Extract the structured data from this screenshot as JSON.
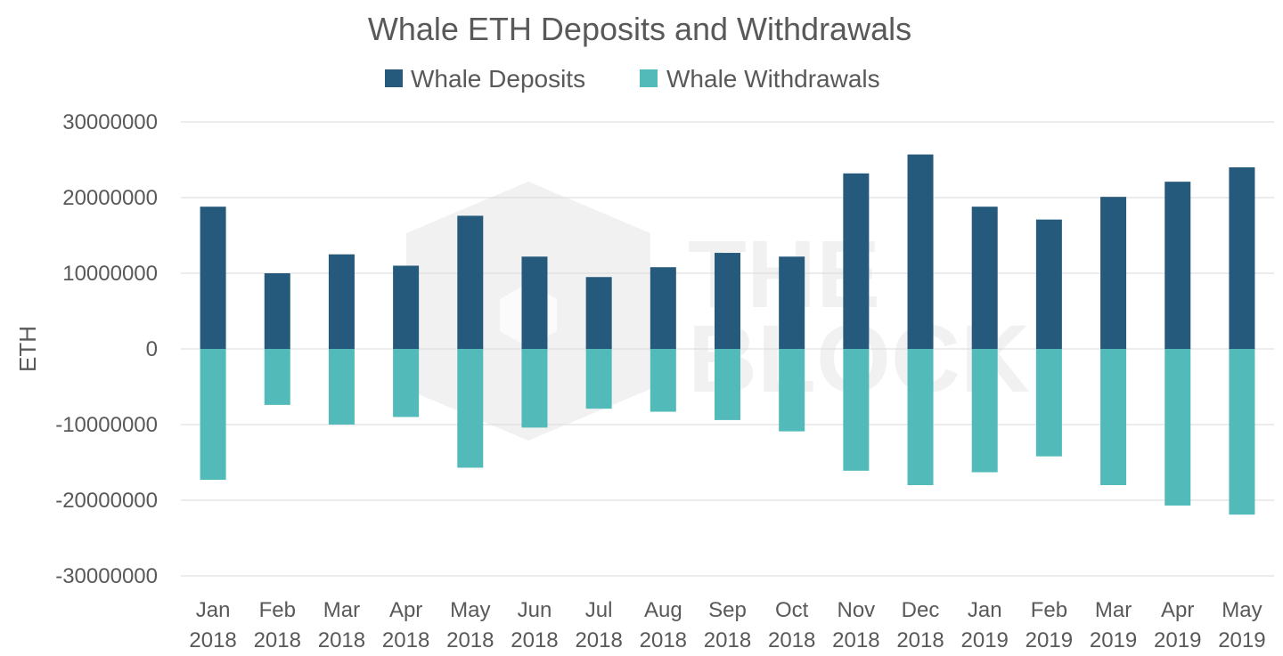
{
  "chart_data": {
    "type": "bar",
    "title": "Whale ETH Deposits and Withdrawals",
    "ylabel": "ETH",
    "xlabel": "",
    "ylim": [
      -30000000,
      30000000
    ],
    "yticks": [
      "30000000",
      "20000000",
      "10000000",
      "0",
      "-10000000",
      "-20000000",
      "-30000000"
    ],
    "ytick_values": [
      30000000,
      20000000,
      10000000,
      0,
      -10000000,
      -20000000,
      -30000000
    ],
    "grid": true,
    "legend_position": "top",
    "categories": [
      {
        "month": "Jan",
        "year": "2018"
      },
      {
        "month": "Feb",
        "year": "2018"
      },
      {
        "month": "Mar",
        "year": "2018"
      },
      {
        "month": "Apr",
        "year": "2018"
      },
      {
        "month": "May",
        "year": "2018"
      },
      {
        "month": "Jun",
        "year": "2018"
      },
      {
        "month": "Jul",
        "year": "2018"
      },
      {
        "month": "Aug",
        "year": "2018"
      },
      {
        "month": "Sep",
        "year": "2018"
      },
      {
        "month": "Oct",
        "year": "2018"
      },
      {
        "month": "Nov",
        "year": "2018"
      },
      {
        "month": "Dec",
        "year": "2018"
      },
      {
        "month": "Jan",
        "year": "2019"
      },
      {
        "month": "Feb",
        "year": "2019"
      },
      {
        "month": "Mar",
        "year": "2019"
      },
      {
        "month": "Apr",
        "year": "2019"
      },
      {
        "month": "May",
        "year": "2019"
      }
    ],
    "series": [
      {
        "name": "Whale Deposits",
        "color": "#265a7c",
        "values": [
          18800000,
          10000000,
          12500000,
          11000000,
          17600000,
          12200000,
          9500000,
          10800000,
          12700000,
          12200000,
          23200000,
          25700000,
          18800000,
          17100000,
          20100000,
          22100000,
          24000000
        ]
      },
      {
        "name": "Whale Withdrawals",
        "color": "#52bbba",
        "values": [
          -17300000,
          -7400000,
          -10000000,
          -9000000,
          -15700000,
          -10400000,
          -7900000,
          -8300000,
          -9400000,
          -10900000,
          -16100000,
          -18000000,
          -16300000,
          -14200000,
          -18000000,
          -20700000,
          -21900000
        ]
      }
    ],
    "watermark": "THE BLOCK"
  }
}
